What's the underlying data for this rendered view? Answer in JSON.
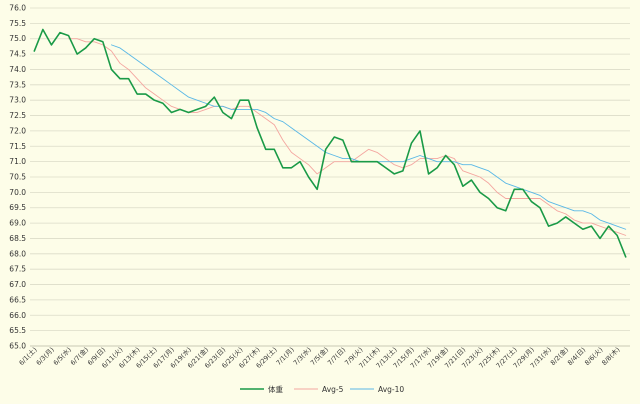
{
  "chart_data": {
    "type": "line",
    "title": "",
    "xlabel": "",
    "ylabel": "",
    "ylim": [
      65.0,
      76.0
    ],
    "y_ticks": [
      "65.0",
      "65.5",
      "66.0",
      "66.5",
      "67.0",
      "67.5",
      "68.0",
      "68.5",
      "69.0",
      "69.5",
      "70.0",
      "70.5",
      "71.0",
      "71.5",
      "72.0",
      "72.5",
      "73.0",
      "73.5",
      "74.0",
      "74.5",
      "75.0",
      "75.5",
      "76.0"
    ],
    "x_tick_labels": [
      "6/1(土)",
      "6/3(月)",
      "6/5(水)",
      "6/7(金)",
      "6/9(日)",
      "6/11(火)",
      "6/13(木)",
      "6/15(土)",
      "6/17(月)",
      "6/19(水)",
      "6/21(金)",
      "6/23(日)",
      "6/25(火)",
      "6/27(木)",
      "6/29(土)",
      "7/1(月)",
      "7/3(水)",
      "7/5(金)",
      "7/7(日)",
      "7/9(火)",
      "7/11(木)",
      "7/13(土)",
      "7/15(月)",
      "7/17(水)",
      "7/19(金)",
      "7/21(日)",
      "7/23(火)",
      "7/25(木)",
      "7/27(土)",
      "7/29(月)",
      "7/31(水)",
      "8/2(金)",
      "8/4(日)",
      "8/6(火)",
      "8/8(木)"
    ],
    "grid": true,
    "legend_position": "bottom",
    "series": [
      {
        "name": "体重",
        "color": "#1a9a47",
        "values": [
          74.6,
          75.3,
          74.8,
          75.2,
          75.1,
          74.5,
          74.7,
          75.0,
          74.9,
          74.0,
          73.7,
          73.7,
          73.2,
          73.2,
          73.0,
          72.9,
          72.6,
          72.7,
          72.6,
          72.7,
          72.8,
          73.1,
          72.6,
          72.4,
          73.0,
          73.0,
          72.1,
          71.4,
          71.4,
          70.8,
          70.8,
          71.0,
          70.5,
          70.1,
          71.4,
          71.8,
          71.7,
          71.0,
          71.0,
          71.0,
          71.0,
          70.8,
          70.6,
          70.7,
          71.6,
          72.0,
          70.6,
          70.8,
          71.2,
          70.9,
          70.2,
          70.4,
          70.0,
          69.8,
          69.5,
          69.4,
          70.1,
          70.1,
          69.7,
          69.5,
          68.9,
          69.0,
          69.2,
          69.0,
          68.8,
          68.9,
          68.5,
          68.9,
          68.6,
          67.9
        ]
      },
      {
        "name": "Avg-5",
        "color": "#f4a6a0",
        "values": [
          null,
          null,
          null,
          null,
          75.0,
          75.0,
          74.9,
          74.9,
          74.8,
          74.6,
          74.2,
          74.0,
          73.7,
          73.4,
          73.2,
          73.0,
          72.8,
          72.7,
          72.6,
          72.6,
          72.7,
          72.8,
          72.8,
          72.7,
          72.8,
          72.8,
          72.6,
          72.4,
          72.2,
          71.7,
          71.3,
          71.1,
          70.9,
          70.6,
          70.8,
          71.0,
          71.0,
          71.0,
          71.2,
          71.4,
          71.3,
          71.1,
          70.9,
          70.8,
          70.9,
          71.1,
          71.1,
          71.1,
          71.2,
          71.1,
          70.7,
          70.6,
          70.5,
          70.3,
          70.0,
          69.8,
          69.8,
          69.8,
          69.8,
          69.8,
          69.6,
          69.4,
          69.3,
          69.1,
          69.0,
          69.0,
          68.9,
          68.8,
          68.7,
          68.6
        ]
      },
      {
        "name": "Avg-10",
        "color": "#5ab8e6",
        "values": [
          null,
          null,
          null,
          null,
          null,
          null,
          null,
          null,
          null,
          74.8,
          74.7,
          74.5,
          74.3,
          74.1,
          73.9,
          73.7,
          73.5,
          73.3,
          73.1,
          73.0,
          72.9,
          72.8,
          72.8,
          72.7,
          72.7,
          72.7,
          72.7,
          72.6,
          72.4,
          72.3,
          72.1,
          71.9,
          71.7,
          71.5,
          71.3,
          71.2,
          71.1,
          71.1,
          71.0,
          71.0,
          71.0,
          71.0,
          71.0,
          71.0,
          71.1,
          71.2,
          71.1,
          71.0,
          71.0,
          71.0,
          70.9,
          70.9,
          70.8,
          70.7,
          70.5,
          70.3,
          70.2,
          70.1,
          70.0,
          69.9,
          69.7,
          69.6,
          69.5,
          69.4,
          69.4,
          69.3,
          69.1,
          69.0,
          68.9,
          68.8
        ]
      }
    ]
  }
}
